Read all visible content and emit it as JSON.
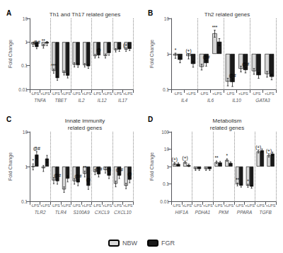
{
  "chart_data": [
    {
      "type": "bar",
      "title": "Th1 and Th17 related genes",
      "label": "A",
      "ylabel": "Fold Change",
      "groups": [
        "TNFA",
        "TBET",
        "IL2",
        "IL12",
        "IL17"
      ],
      "categories": [
        "-LPS",
        "+LPS",
        "-LPS",
        "+LPS",
        "-LPS",
        "+LPS",
        "-LPS",
        "+LPS",
        "-LPS",
        "+LPS"
      ],
      "series": [
        {
          "name": "NBW",
          "color": "#d8d8d8",
          "values": [
            0.8,
            0.68,
            0.06,
            0.05,
            0.11,
            0.105,
            0.255,
            0.26,
            0.455,
            0.485
          ],
          "errors": [
            0.15,
            0.13,
            0.012,
            0.01,
            0.022,
            0.018,
            0.045,
            0.05,
            0.075,
            0.08
          ]
        },
        {
          "name": "FGR",
          "color": "#1a1a1a",
          "values": [
            0.62,
            0.88,
            0.03,
            0.038,
            0.105,
            0.095,
            0.275,
            0.345,
            0.49,
            0.515
          ],
          "errors": [
            0.1,
            0.18,
            0.006,
            0.008,
            0.02,
            0.018,
            0.06,
            0.07,
            0.09,
            0.08
          ]
        }
      ],
      "annotations": [
        {
          "group": "TNFA",
          "category": "+LPS",
          "series": "NBW",
          "text": "**"
        },
        {
          "group": "TNFA",
          "category": "-LPS",
          "series": "FGR",
          "text": "@#"
        },
        {
          "group": "TBET",
          "category": "-LPS",
          "series": "NBW",
          "text": "***"
        },
        {
          "group": "IL12",
          "category": "-LPS",
          "series": "FGR",
          "text": "@"
        },
        {
          "group": "IL17",
          "category": "+LPS",
          "series": "NBW",
          "text": "(+)"
        }
      ],
      "log": "y",
      "ylim": [
        0.01,
        10
      ],
      "yticks": [
        0.01,
        0.1,
        1,
        10
      ],
      "grid": false,
      "legend": "bottom"
    },
    {
      "type": "bar",
      "title": "Th2 related genes",
      "label": "B",
      "ylabel": "Fold Change",
      "groups": [
        "IL4",
        "IL6",
        "IL10",
        "GATA3"
      ],
      "categories": [
        "-LPS",
        "+LPS",
        "-LPS",
        "+LPS",
        "-LPS",
        "+LPS",
        "-LPS",
        "+LPS"
      ],
      "series": [
        {
          "name": "NBW",
          "color": "#d8d8d8",
          "values": [
            0.9,
            0.87,
            0.43,
            3.8,
            0.165,
            0.38,
            0.325,
            0.27
          ],
          "errors": [
            0.15,
            0.15,
            0.08,
            0.85,
            0.04,
            0.07,
            0.06,
            0.05
          ]
        },
        {
          "name": "FGR",
          "color": "#1a1a1a",
          "values": [
            0.68,
            0.52,
            0.55,
            2.2,
            0.16,
            0.35,
            0.25,
            0.225
          ],
          "errors": [
            0.12,
            0.1,
            0.1,
            0.5,
            0.04,
            0.06,
            0.045,
            0.04
          ]
        }
      ],
      "annotations": [
        {
          "group": "IL4",
          "category": "-LPS",
          "series": "NBW",
          "text": "*"
        },
        {
          "group": "IL4",
          "category": "+LPS",
          "series": "NBW",
          "text": "(+)"
        },
        {
          "group": "IL6",
          "category": "+LPS",
          "series": "NBW",
          "text": "***"
        },
        {
          "group": "IL6",
          "category": "-LPS",
          "series": "FGR",
          "text": "@#"
        },
        {
          "group": "IL10",
          "category": "-LPS",
          "series": "FGR",
          "text": "@#"
        },
        {
          "group": "IL10",
          "category": "+LPS",
          "series": "FGR",
          "text": "@#"
        }
      ],
      "log": "y",
      "ylim": [
        0.1,
        10
      ],
      "yticks": [
        0.1,
        1,
        10
      ],
      "grid": false,
      "legend": "bottom"
    },
    {
      "type": "bar",
      "title": "Innate immunity\nrelated genes",
      "label": "C",
      "ylabel": "Fold Change",
      "groups": [
        "TLR2",
        "TLR4",
        "S100A9",
        "CXCL9",
        "CXCL10"
      ],
      "categories": [
        "-LPS",
        "+LPS",
        "-LPS",
        "+LPS",
        "-LPS",
        "+LPS",
        "-LPS",
        "+LPS",
        "-LPS",
        "+LPS"
      ],
      "series": [
        {
          "name": "NBW",
          "color": "#d8d8d8",
          "values": [
            1.0,
            0.9,
            0.4,
            0.22,
            0.38,
            0.62,
            0.7,
            0.8,
            0.32,
            0.28
          ],
          "errors": [
            0.2,
            0.18,
            0.08,
            0.04,
            0.07,
            0.12,
            0.12,
            0.15,
            0.06,
            0.05
          ]
        },
        {
          "name": "FGR",
          "color": "#1a1a1a",
          "values": [
            2.2,
            1.7,
            0.38,
            0.45,
            0.35,
            0.28,
            0.6,
            0.55,
            0.55,
            0.42
          ],
          "errors": [
            0.5,
            0.4,
            0.07,
            0.09,
            0.07,
            0.06,
            0.1,
            0.1,
            0.1,
            0.08
          ]
        }
      ],
      "annotations": [
        {
          "group": "TLR2",
          "category": "-LPS",
          "series": "NBW",
          "text": "*"
        },
        {
          "group": "TLR2",
          "category": "-LPS",
          "series": "FGR",
          "text": "@#"
        },
        {
          "group": "TLR4",
          "category": "-LPS",
          "series": "FGR",
          "text": "@#"
        },
        {
          "group": "S100A9",
          "category": "+LPS",
          "series": "NBW",
          "text": "**"
        },
        {
          "group": "S100A9",
          "category": "-LPS",
          "series": "FGR",
          "text": "@#"
        },
        {
          "group": "S100A9",
          "category": "+LPS",
          "series": "FGR",
          "text": "@"
        },
        {
          "group": "CXCL9",
          "category": "-LPS",
          "series": "FGR",
          "text": "@#"
        },
        {
          "group": "CXCL9",
          "category": "+LPS",
          "series": "FGR",
          "text": "@"
        },
        {
          "group": "CXCL10",
          "category": "-LPS",
          "series": "FGR",
          "text": "@#"
        },
        {
          "group": "CXCL10",
          "category": "+LPS",
          "series": "FGR",
          "text": "@"
        }
      ],
      "log": "y",
      "ylim": [
        0.1,
        10
      ],
      "yticks": [
        0.1,
        1,
        10
      ],
      "grid": false,
      "legend": "bottom"
    },
    {
      "type": "bar",
      "title": "Metabolism\nrelated genes",
      "label": "D",
      "ylabel": "Fold Change",
      "groups": [
        "HIF1A",
        "PDHA1",
        "PKM",
        "PPARA",
        "TGFB"
      ],
      "categories": [
        "-LPS",
        "+LPS",
        "-LPS",
        "+LPS",
        "-LPS",
        "+LPS",
        "-LPS",
        "+LPS",
        "-LPS",
        "+LPS"
      ],
      "series": [
        {
          "name": "NBW",
          "color": "#d8d8d8",
          "values": [
            1.5,
            1.8,
            0.72,
            0.72,
            1.8,
            2.4,
            0.095,
            0.08,
            7.5,
            4.5
          ],
          "errors": [
            0.25,
            0.3,
            0.12,
            0.12,
            0.3,
            0.4,
            0.018,
            0.016,
            1.5,
            1.0
          ]
        },
        {
          "name": "FGR",
          "color": "#1a1a1a",
          "values": [
            1.4,
            1.2,
            0.72,
            0.72,
            1.7,
            1.6,
            0.08,
            0.07,
            8.5,
            5.5
          ],
          "errors": [
            0.22,
            0.2,
            0.12,
            0.12,
            0.28,
            0.25,
            0.015,
            0.014,
            1.8,
            1.2
          ]
        }
      ],
      "annotations": [
        {
          "group": "HIF1A",
          "category": "-LPS",
          "series": "NBW",
          "text": "(+)"
        },
        {
          "group": "HIF1A",
          "category": "+LPS",
          "series": "NBW",
          "text": "(+)"
        },
        {
          "group": "PKM",
          "category": "-LPS",
          "series": "NBW",
          "text": "**"
        },
        {
          "group": "PKM",
          "category": "+LPS",
          "series": "NBW",
          "text": "*"
        },
        {
          "group": "PPARA",
          "category": "-LPS",
          "series": "NBW",
          "text": "**"
        },
        {
          "group": "PPARA",
          "category": "+LPS",
          "series": "NBW",
          "text": "*"
        },
        {
          "group": "TGFB",
          "category": "-LPS",
          "series": "NBW",
          "text": "(+)"
        },
        {
          "group": "TGFB",
          "category": "+LPS",
          "series": "NBW",
          "text": "(+)"
        }
      ],
      "log": "y",
      "ylim": [
        0.01,
        100
      ],
      "yticks": [
        0.01,
        0.1,
        1,
        10,
        100
      ],
      "grid": false,
      "legend": "bottom"
    }
  ]
}
